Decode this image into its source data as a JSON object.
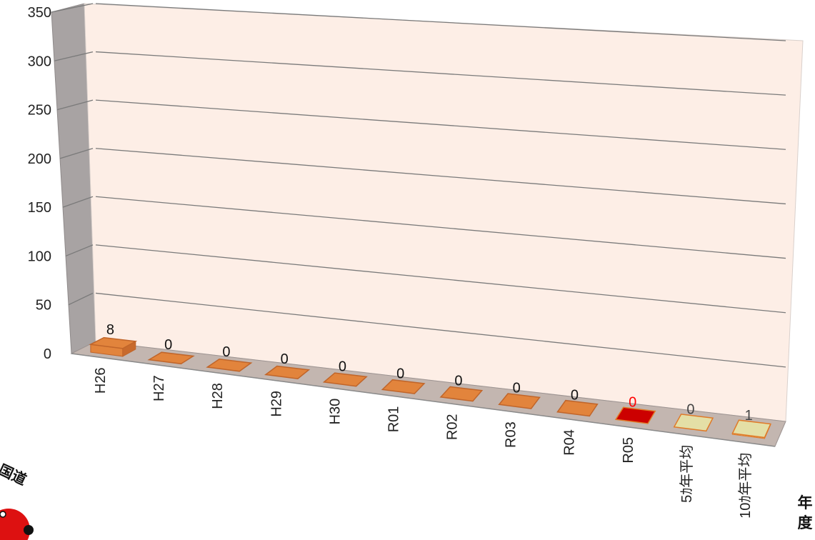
{
  "chart_data": {
    "type": "bar",
    "categories": [
      "H26",
      "H27",
      "H28",
      "H29",
      "H30",
      "R01",
      "R02",
      "R03",
      "R04",
      "R05",
      "5ｶ年平均",
      "10ｶ年平均"
    ],
    "values": [
      8,
      0,
      0,
      0,
      0,
      0,
      0,
      0,
      0,
      0,
      0,
      1
    ],
    "data_labels": [
      "8",
      "0",
      "0",
      "0",
      "0",
      "0",
      "0",
      "0",
      "0",
      "0",
      "0",
      "1"
    ],
    "xlabel": "年度",
    "ylabel": "",
    "ylim": [
      0,
      350
    ],
    "yticks": [
      "0",
      "50",
      "100",
      "150",
      "200",
      "250",
      "300",
      "350"
    ],
    "grid": true,
    "style": "3d-column",
    "colors": {
      "bar_default": "#e2843c",
      "bar_highlight": "#cc0000",
      "bar_average": "#e4dfa6",
      "bar_average_edge": "#e07a28",
      "label_default": "#111111",
      "label_highlight": "#ff0000",
      "label_average": "#444444",
      "back_wall": "#fdeee6",
      "side_wall": "#a8a3a3",
      "floor": "#c3b6b0",
      "gridline": "#7a7a7a"
    },
    "highlight_index": 9,
    "average_indices": [
      10,
      11
    ]
  }
}
